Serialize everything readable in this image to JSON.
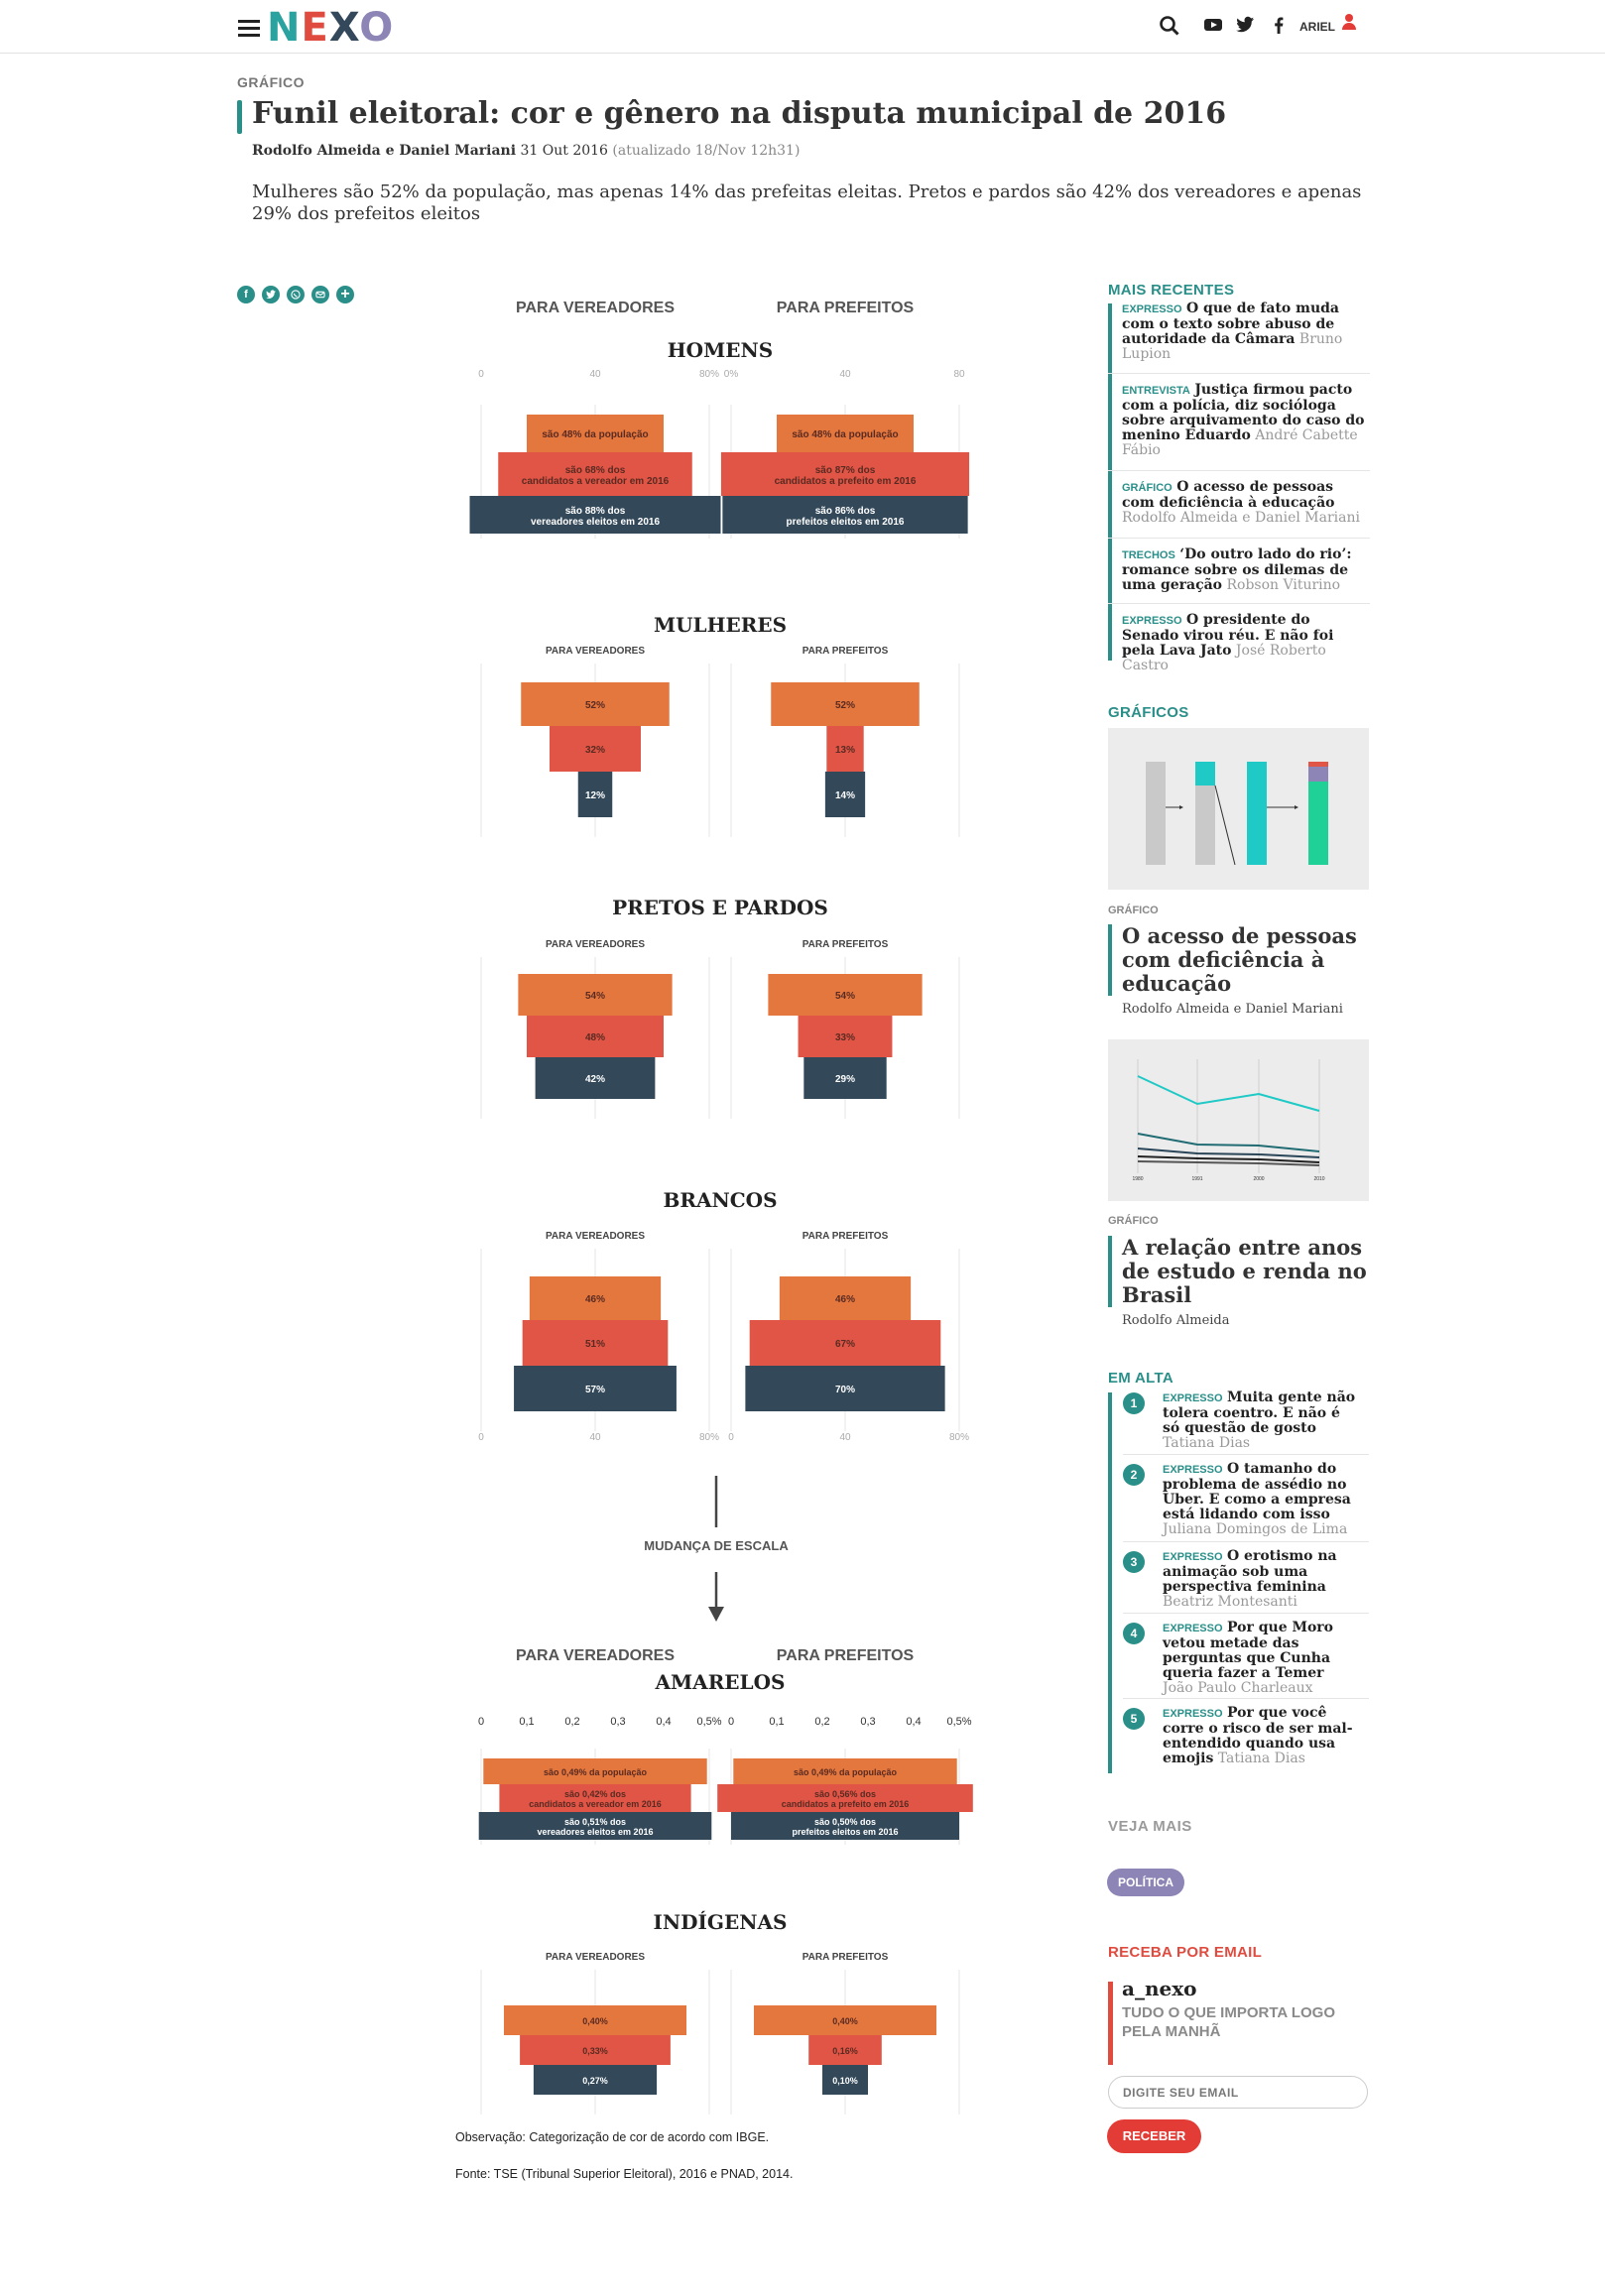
{
  "header": {
    "logo": "NEXO",
    "menu_icon": "hamburger-icon",
    "icons": [
      "search-icon",
      "youtube-icon",
      "twitter-icon",
      "facebook-icon",
      "user-icon"
    ],
    "user": "ARIEL"
  },
  "article": {
    "kicker": "GRÁFICO",
    "title": "Funil eleitoral: cor e gênero na disputa municipal de 2016",
    "authors": "Rodolfo Almeida e Daniel Mariani",
    "date": "31 Out 2016",
    "updated": "(atualizado 18/Nov 12h31)",
    "lede": "Mulheres são 52% da população, mas apenas 14% das prefeitas eleitas. Pretos e pardos são 42% dos vereadores e apenas 29% dos prefeitos eleitos",
    "share_icons": [
      "facebook-icon",
      "twitter-icon",
      "whatsapp-icon",
      "email-icon",
      "plus-icon"
    ],
    "note": "Observação: Categorização de cor de acordo com IBGE.",
    "source": "Fonte: TSE (Tribunal Superior Eleitoral), 2016 e PNAD, 2014."
  },
  "chart_data": {
    "type": "bar",
    "colors": {
      "populacao": "#e3773d",
      "candidatos": "#e05545",
      "eleitos": "#33495a"
    },
    "col_titles": [
      "PARA VEREADORES",
      "PARA PREFEITOS"
    ],
    "scale_change_label": "MUDANÇA DE ESCALA",
    "ticks_main": [
      "0",
      "40",
      "80%"
    ],
    "ticks_main_pref": [
      "0%",
      "40",
      "80"
    ],
    "ticks_main_bottom_pref": [
      "0",
      "40",
      "80%"
    ],
    "ticks_small": [
      "0",
      "0,1",
      "0,2",
      "0,3",
      "0,4",
      "0,5%"
    ],
    "groups": [
      {
        "name": "HOMENS",
        "vereadores": {
          "values": [
            48,
            68,
            88
          ],
          "labels": [
            "são 48% da população",
            "são 68% dos candidatos a vereador em 2016",
            "são 88% dos vereadores eleitos em 2016"
          ]
        },
        "prefeitos": {
          "values": [
            48,
            87,
            86
          ],
          "labels": [
            "são 48% da população",
            "são 87% dos candidatos a prefeito em 2016",
            "são 86% dos prefeitos eleitos em 2016"
          ]
        }
      },
      {
        "name": "MULHERES",
        "vereadores": {
          "values": [
            52,
            32,
            12
          ],
          "labels": [
            "52%",
            "32%",
            "12%"
          ]
        },
        "prefeitos": {
          "values": [
            52,
            13,
            14
          ],
          "labels": [
            "52%",
            "13%",
            "14%"
          ]
        }
      },
      {
        "name": "PRETOS E PARDOS",
        "vereadores": {
          "values": [
            54,
            48,
            42
          ],
          "labels": [
            "54%",
            "48%",
            "42%"
          ]
        },
        "prefeitos": {
          "values": [
            54,
            33,
            29
          ],
          "labels": [
            "54%",
            "33%",
            "29%"
          ]
        }
      },
      {
        "name": "BRANCOS",
        "vereadores": {
          "values": [
            46,
            51,
            57
          ],
          "labels": [
            "46%",
            "51%",
            "57%"
          ]
        },
        "prefeitos": {
          "values": [
            46,
            67,
            70
          ],
          "labels": [
            "46%",
            "67%",
            "70%"
          ]
        }
      },
      {
        "name": "AMARELOS",
        "vereadores": {
          "values": [
            0.49,
            0.42,
            0.51
          ],
          "labels": [
            "são 0,49% da população",
            "são 0,42% dos candidatos a vereador em 2016",
            "são 0,51% dos vereadores eleitos em 2016"
          ]
        },
        "prefeitos": {
          "values": [
            0.49,
            0.56,
            0.5
          ],
          "labels": [
            "são 0,49% da população",
            "são 0,56% dos candidatos a prefeito em 2016",
            "são 0,50% dos prefeitos eleitos em 2016"
          ]
        }
      },
      {
        "name": "INDÍGENAS",
        "vereadores": {
          "values": [
            0.4,
            0.33,
            0.27
          ],
          "labels": [
            "0,40%",
            "0,33%",
            "0,27%"
          ]
        },
        "prefeitos": {
          "values": [
            0.4,
            0.16,
            0.1
          ],
          "labels": [
            "0,40%",
            "0,16%",
            "0,10%"
          ]
        }
      }
    ]
  },
  "sidebar": {
    "recent_title": "MAIS RECENTES",
    "recent": [
      {
        "tag": "EXPRESSO",
        "title": "O que de fato muda com o texto sobre abuso de autoridade da Câmara",
        "author": "Bruno Lupion"
      },
      {
        "tag": "ENTREVISTA",
        "title": "Justiça firmou pacto com a polícia, diz socióloga sobre arquivamento do caso do menino Eduardo",
        "author": "André Cabette Fábio"
      },
      {
        "tag": "GRÁFICO",
        "title": "O acesso de pessoas com deficiência à educação",
        "author": "Rodolfo Almeida e Daniel Mariani"
      },
      {
        "tag": "TRECHOS",
        "title": "‘Do outro lado do rio’: romance sobre os dilemas de uma geração",
        "author": "Robson Viturino"
      },
      {
        "tag": "EXPRESSO",
        "title": "O presidente do Senado virou réu. E não foi pela Lava Jato",
        "author": "José Roberto Castro"
      }
    ],
    "graficos_title": "GRÁFICOS",
    "graficos": [
      {
        "kicker": "GRÁFICO",
        "title": "O acesso de pessoas com deficiência à educação",
        "author": "Rodolfo Almeida e Daniel Mariani"
      },
      {
        "kicker": "GRÁFICO",
        "title": "A relação entre anos de estudo e renda no Brasil",
        "author": "Rodolfo Almeida",
        "thumb_years": [
          "1980",
          "1991",
          "2000",
          "2010"
        ]
      }
    ],
    "trending_title": "EM ALTA",
    "trending": [
      {
        "rank": "1",
        "tag": "EXPRESSO",
        "title": "Muita gente não tolera coentro. E não é só questão de gosto",
        "author": "Tatiana Dias"
      },
      {
        "rank": "2",
        "tag": "EXPRESSO",
        "title": "O tamanho do problema de assédio no Uber. E como a empresa está lidando com isso",
        "author": "Juliana Domingos de Lima"
      },
      {
        "rank": "3",
        "tag": "EXPRESSO",
        "title": "O erotismo na animação sob uma perspectiva feminina",
        "author": "Beatriz Montesanti"
      },
      {
        "rank": "4",
        "tag": "EXPRESSO",
        "title": "Por que Moro vetou metade das perguntas que Cunha queria fazer a Temer",
        "author": "João Paulo Charleaux"
      },
      {
        "rank": "5",
        "tag": "EXPRESSO",
        "title": "Por que você corre o risco de ser mal-entendido quando usa emojis",
        "author": "Tatiana Dias"
      }
    ],
    "veja_mais": "VEJA MAIS",
    "tag": "POLÍTICA",
    "newsletter_title": "RECEBA POR EMAIL",
    "newsletter_name": "a_nexo",
    "newsletter_sub": "TUDO O QUE IMPORTA LOGO PELA MANHÃ",
    "email_placeholder": "DIGITE SEU EMAIL",
    "submit": "RECEBER"
  }
}
